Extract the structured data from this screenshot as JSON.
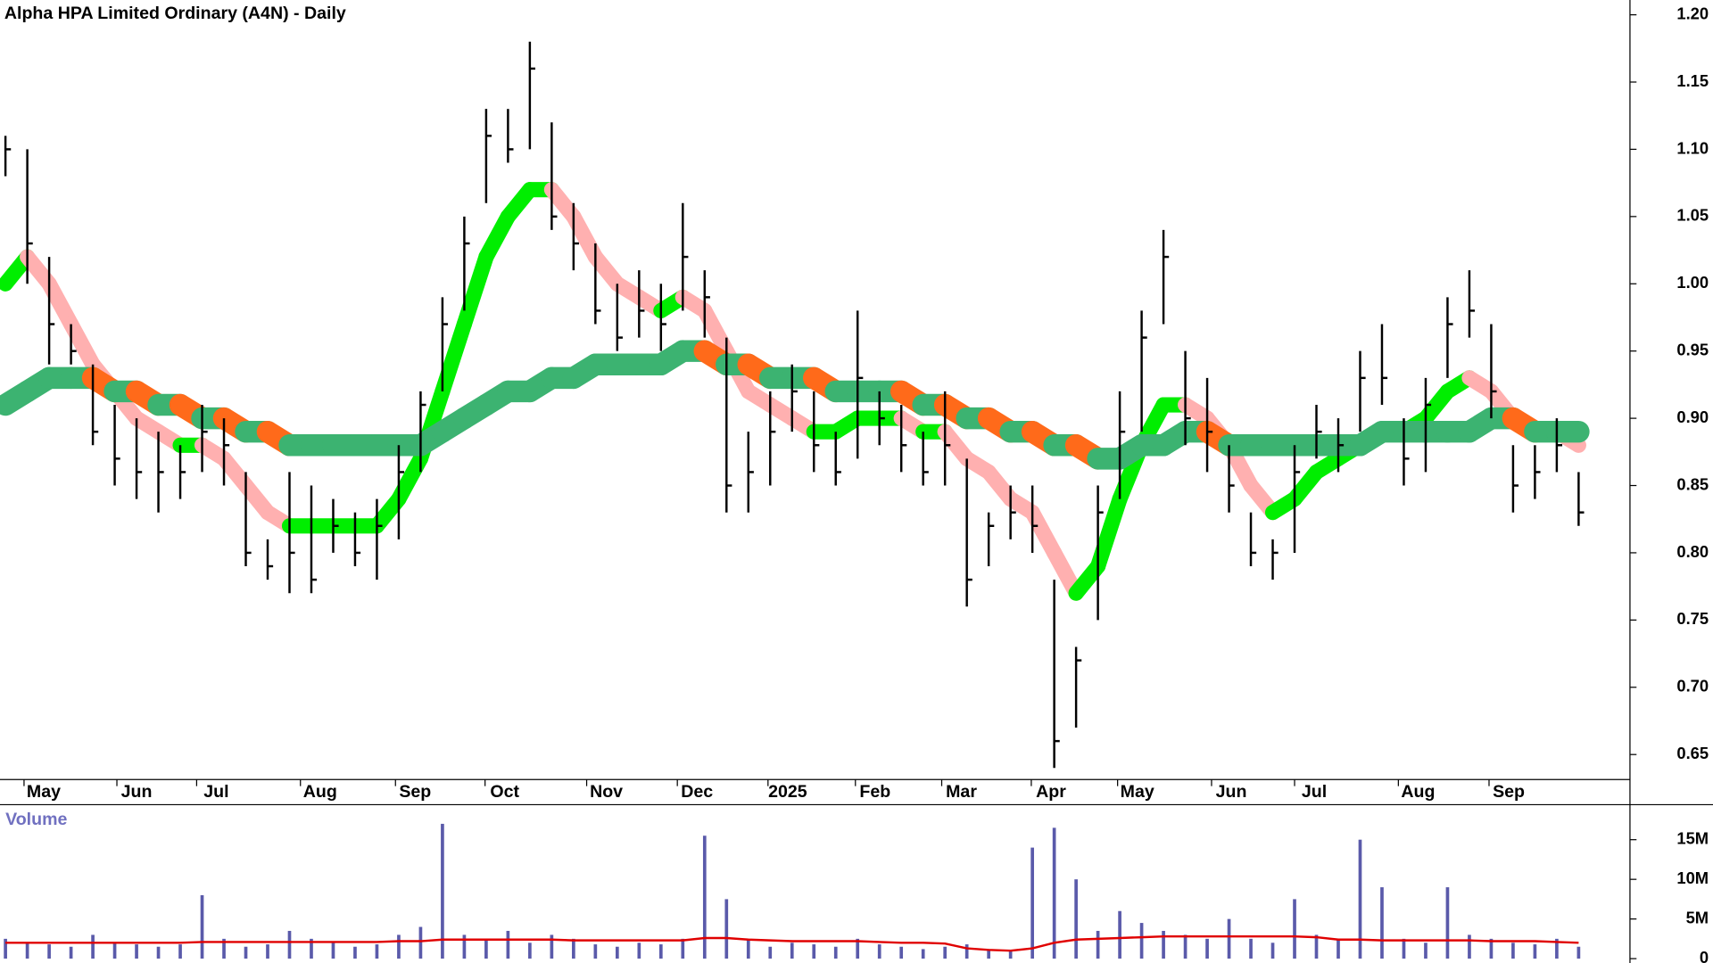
{
  "chart_data": {
    "type": "ohlc",
    "title": "Alpha HPA Limited Ordinary (A4N) - Daily",
    "color": "#000000",
    "xlim": [
      -0.25,
      74.25
    ],
    "xticks": [
      {
        "value": 1.75,
        "label": "May"
      },
      {
        "value": 6,
        "label": "Jun"
      },
      {
        "value": 9.65,
        "label": "Jul"
      },
      {
        "value": 14.4,
        "label": "Aug"
      },
      {
        "value": 18.75,
        "label": "Sep"
      },
      {
        "value": 22.85,
        "label": "Oct"
      },
      {
        "value": 27.5,
        "label": "Nov"
      },
      {
        "value": 31.65,
        "label": "Dec"
      },
      {
        "value": 35.8,
        "label": "2025"
      },
      {
        "value": 39.8,
        "label": "Feb"
      },
      {
        "value": 43.75,
        "label": "Mar"
      },
      {
        "value": 47.85,
        "label": "Apr"
      },
      {
        "value": 51.8,
        "label": "May"
      },
      {
        "value": 56.1,
        "label": "Jun"
      },
      {
        "value": 59.9,
        "label": "Jul"
      },
      {
        "value": 64.65,
        "label": "Aug"
      },
      {
        "value": 68.8,
        "label": "Sep"
      }
    ],
    "ylim": [
      0.633,
      1.211
    ],
    "yticks": [
      {
        "value": 1.2,
        "label": "1.20"
      },
      1.15,
      {
        "value": 1.1,
        "label": "1.10"
      },
      1.05,
      {
        "value": 1.0,
        "label": "1.00"
      },
      0.95,
      {
        "value": 0.9,
        "label": "0.90"
      },
      0.85,
      {
        "value": 0.8,
        "label": "0.80"
      },
      0.75,
      {
        "value": 0.7,
        "label": "0.70"
      },
      0.65
    ],
    "high": [
      1.11,
      1.1,
      1.02,
      0.97,
      0.94,
      0.91,
      0.9,
      0.89,
      0.88,
      0.91,
      0.9,
      0.86,
      0.81,
      0.86,
      0.85,
      0.84,
      0.83,
      0.84,
      0.88,
      0.92,
      0.99,
      1.05,
      1.13,
      1.13,
      1.18,
      1.12,
      1.06,
      1.03,
      1.0,
      1.01,
      1.0,
      1.06,
      1.01,
      0.96,
      0.89,
      0.92,
      0.94,
      0.92,
      0.89,
      0.98,
      0.92,
      0.91,
      0.89,
      0.92,
      0.87,
      0.83,
      0.85,
      0.85,
      0.78,
      0.73,
      0.85,
      0.92,
      0.98,
      1.04,
      0.95,
      0.93,
      0.88,
      0.83,
      0.81,
      0.88,
      0.91,
      0.9,
      0.95,
      0.97,
      0.9,
      0.93,
      0.99,
      1.01,
      0.97,
      0.88,
      0.88,
      0.9,
      0.86
    ],
    "low": [
      1.08,
      1.0,
      0.94,
      0.94,
      0.88,
      0.85,
      0.84,
      0.83,
      0.84,
      0.86,
      0.85,
      0.79,
      0.78,
      0.77,
      0.77,
      0.8,
      0.79,
      0.78,
      0.81,
      0.86,
      0.92,
      0.98,
      1.06,
      1.09,
      1.1,
      1.04,
      1.01,
      0.97,
      0.95,
      0.96,
      0.95,
      0.98,
      0.96,
      0.83,
      0.83,
      0.85,
      0.89,
      0.86,
      0.85,
      0.87,
      0.88,
      0.86,
      0.85,
      0.85,
      0.76,
      0.79,
      0.81,
      0.8,
      0.64,
      0.67,
      0.75,
      0.84,
      0.89,
      0.97,
      0.88,
      0.86,
      0.83,
      0.79,
      0.78,
      0.8,
      0.87,
      0.86,
      0.89,
      0.91,
      0.85,
      0.86,
      0.93,
      0.96,
      0.9,
      0.83,
      0.84,
      0.86,
      0.82
    ],
    "close": [
      1.1,
      1.03,
      0.97,
      0.95,
      0.89,
      0.87,
      0.86,
      0.86,
      0.86,
      0.89,
      0.88,
      0.8,
      0.79,
      0.8,
      0.78,
      0.82,
      0.8,
      0.82,
      0.86,
      0.91,
      0.97,
      1.03,
      1.11,
      1.1,
      1.16,
      1.05,
      1.03,
      0.98,
      0.96,
      0.98,
      0.97,
      1.02,
      0.99,
      0.85,
      0.86,
      0.89,
      0.92,
      0.88,
      0.86,
      0.93,
      0.9,
      0.88,
      0.86,
      0.88,
      0.78,
      0.82,
      0.83,
      0.82,
      0.66,
      0.72,
      0.83,
      0.89,
      0.96,
      1.02,
      0.9,
      0.89,
      0.85,
      0.8,
      0.8,
      0.86,
      0.89,
      0.88,
      0.93,
      0.93,
      0.87,
      0.91,
      0.97,
      0.98,
      0.92,
      0.85,
      0.86,
      0.88,
      0.83
    ],
    "averages": [
      {
        "values": [
          1.0,
          1.02,
          1.0,
          0.97,
          0.94,
          0.92,
          0.9,
          0.89,
          0.88,
          0.88,
          0.87,
          0.85,
          0.83,
          0.82,
          0.82,
          0.82,
          0.82,
          0.82,
          0.84,
          0.87,
          0.92,
          0.97,
          1.02,
          1.05,
          1.07,
          1.07,
          1.05,
          1.02,
          1.0,
          0.99,
          0.98,
          0.99,
          0.98,
          0.95,
          0.92,
          0.91,
          0.9,
          0.89,
          0.89,
          0.9,
          0.9,
          0.9,
          0.89,
          0.89,
          0.87,
          0.86,
          0.84,
          0.83,
          0.8,
          0.77,
          0.79,
          0.84,
          0.88,
          0.91,
          0.91,
          0.9,
          0.88,
          0.85,
          0.83,
          0.84,
          0.86,
          0.87,
          0.88,
          0.89,
          0.89,
          0.9,
          0.92,
          0.93,
          0.92,
          0.9,
          0.89,
          0.89,
          0.88
        ],
        "up_color": "#00ee00",
        "down_color": "#ffb0b0"
      },
      {
        "values": [
          0.91,
          0.92,
          0.93,
          0.93,
          0.93,
          0.92,
          0.92,
          0.91,
          0.91,
          0.9,
          0.9,
          0.89,
          0.89,
          0.88,
          0.88,
          0.88,
          0.88,
          0.88,
          0.88,
          0.88,
          0.89,
          0.9,
          0.91,
          0.92,
          0.92,
          0.93,
          0.93,
          0.94,
          0.94,
          0.94,
          0.94,
          0.95,
          0.95,
          0.94,
          0.94,
          0.93,
          0.93,
          0.93,
          0.92,
          0.92,
          0.92,
          0.92,
          0.91,
          0.91,
          0.9,
          0.9,
          0.89,
          0.89,
          0.88,
          0.88,
          0.87,
          0.87,
          0.88,
          0.88,
          0.89,
          0.89,
          0.88,
          0.88,
          0.88,
          0.88,
          0.88,
          0.88,
          0.88,
          0.89,
          0.89,
          0.89,
          0.89,
          0.89,
          0.9,
          0.9,
          0.89,
          0.89,
          0.89
        ],
        "up_color": "#3cb371",
        "down_color": "#ff6a1a"
      }
    ],
    "volume": {
      "title": "Volume",
      "color": "#5a5aaa",
      "average_color": "#e00000",
      "ylim": [
        0,
        19000000
      ],
      "yticks": [
        {
          "value": 15000000,
          "label": "15M"
        },
        {
          "value": 10000000,
          "label": "10M"
        },
        {
          "value": 5000000,
          "label": "5M"
        },
        0
      ],
      "values": [
        2500000,
        2000000,
        1800000,
        1500000,
        3000000,
        2000000,
        1800000,
        1500000,
        1800000,
        8000000,
        2500000,
        1500000,
        1800000,
        3500000,
        2500000,
        2000000,
        1500000,
        1800000,
        3000000,
        4000000,
        17000000,
        3000000,
        2500000,
        3500000,
        2000000,
        3000000,
        2500000,
        1800000,
        1500000,
        2000000,
        1800000,
        2500000,
        15500000,
        7500000,
        2500000,
        1500000,
        2000000,
        1800000,
        1500000,
        2500000,
        1800000,
        1500000,
        1200000,
        1500000,
        1800000,
        1200000,
        1000000,
        14000000,
        16500000,
        10000000,
        3500000,
        6000000,
        4500000,
        3500000,
        3000000,
        2500000,
        5000000,
        2500000,
        2000000,
        7500000,
        3000000,
        2500000,
        15000000,
        9000000,
        2500000,
        2000000,
        9000000,
        3000000,
        2500000,
        2000000,
        1800000,
        2500000,
        1500000
      ],
      "average": [
        2000000,
        2000000,
        2000000,
        2000000,
        2000000,
        2000000,
        2000000,
        2000000,
        2000000,
        2100000,
        2100000,
        2100000,
        2100000,
        2100000,
        2100000,
        2100000,
        2100000,
        2100000,
        2200000,
        2200000,
        2400000,
        2400000,
        2400000,
        2400000,
        2400000,
        2400000,
        2300000,
        2300000,
        2300000,
        2300000,
        2300000,
        2300000,
        2600000,
        2600000,
        2400000,
        2300000,
        2200000,
        2200000,
        2200000,
        2200000,
        2100000,
        2000000,
        2000000,
        1900000,
        1300000,
        1100000,
        1000000,
        1300000,
        2000000,
        2400000,
        2500000,
        2600000,
        2700000,
        2800000,
        2800000,
        2800000,
        2800000,
        2800000,
        2800000,
        2800000,
        2700000,
        2400000,
        2400000,
        2300000,
        2300000,
        2300000,
        2300000,
        2300000,
        2200000,
        2200000,
        2200000,
        2100000,
        2000000
      ]
    }
  }
}
